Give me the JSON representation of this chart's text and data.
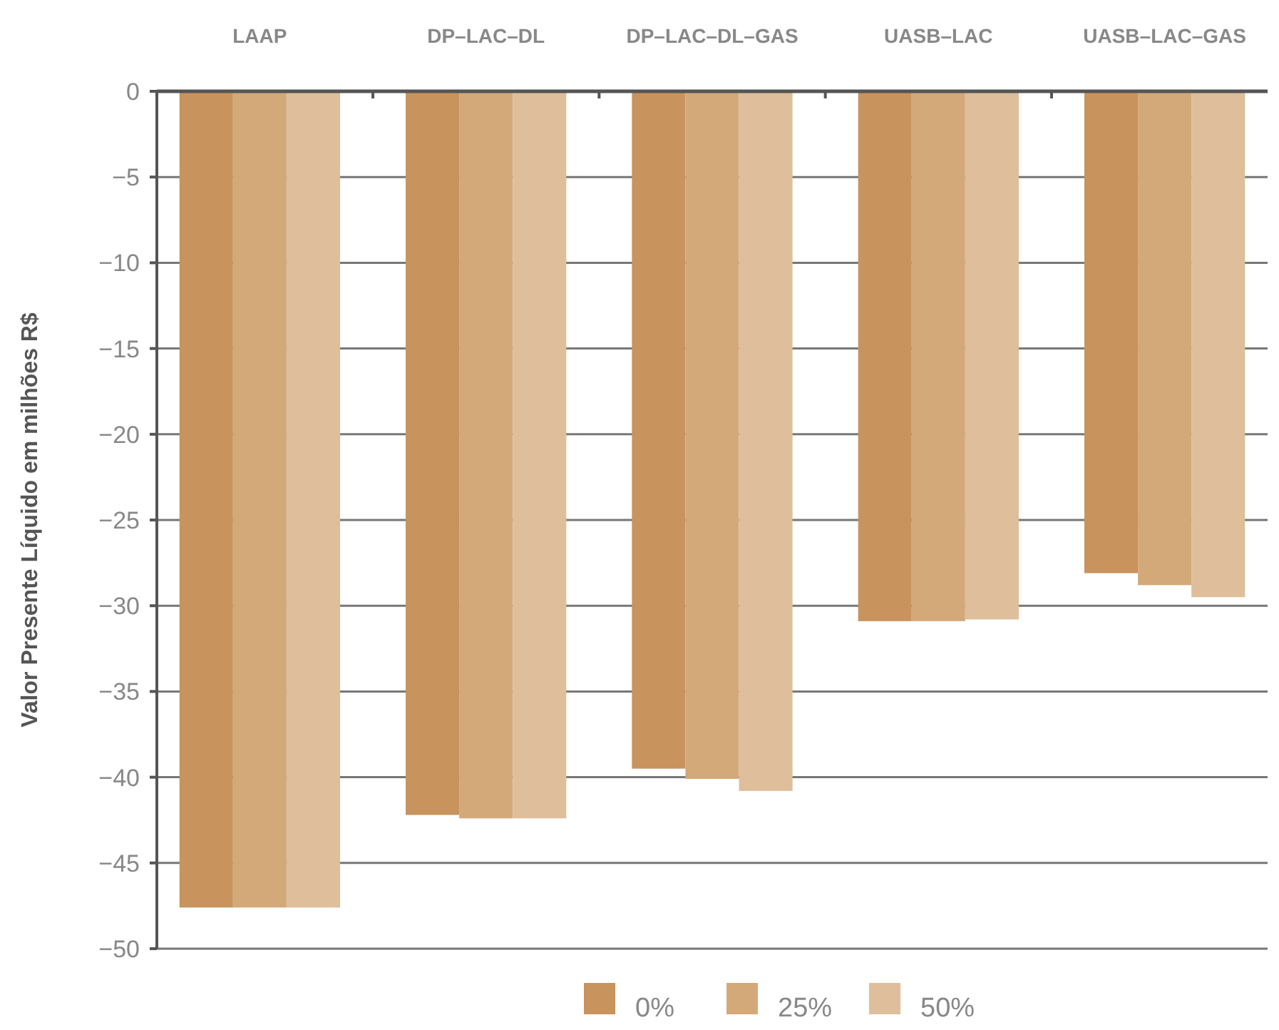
{
  "chart_data": {
    "type": "bar",
    "ylabel": "Valor Presente Líquido em milhões R$",
    "categories": [
      "LAAP",
      "DP–LAC–DL",
      "DP–LAC–DL–GAS",
      "UASB–LAC",
      "UASB–LAC–GAS"
    ],
    "series": [
      {
        "name": "0%",
        "color": "#c8935c",
        "values": [
          -47.6,
          -42.2,
          -39.5,
          -30.9,
          -28.1
        ]
      },
      {
        "name": "25%",
        "color": "#d4a97a",
        "values": [
          -47.6,
          -42.4,
          -40.1,
          -30.9,
          -28.8
        ]
      },
      {
        "name": "50%",
        "color": "#dfbe9b",
        "values": [
          -47.6,
          -42.4,
          -40.8,
          -30.8,
          -29.5
        ]
      }
    ],
    "ylim": [
      -50,
      0
    ],
    "yticks": [
      0,
      {
        "value": -5,
        "label": "−5"
      },
      {
        "value": -10,
        "label": "−10"
      },
      {
        "value": -15,
        "label": "−15"
      },
      {
        "value": -20,
        "label": "−20"
      },
      {
        "value": -25,
        "label": "−25"
      },
      {
        "value": -30,
        "label": "−30"
      },
      {
        "value": -35,
        "label": "−35"
      },
      {
        "value": -40,
        "label": "−40"
      },
      {
        "value": -45,
        "label": "−45"
      },
      {
        "value": -50,
        "label": "−50"
      }
    ],
    "grid": "y",
    "legend": "bottom"
  }
}
